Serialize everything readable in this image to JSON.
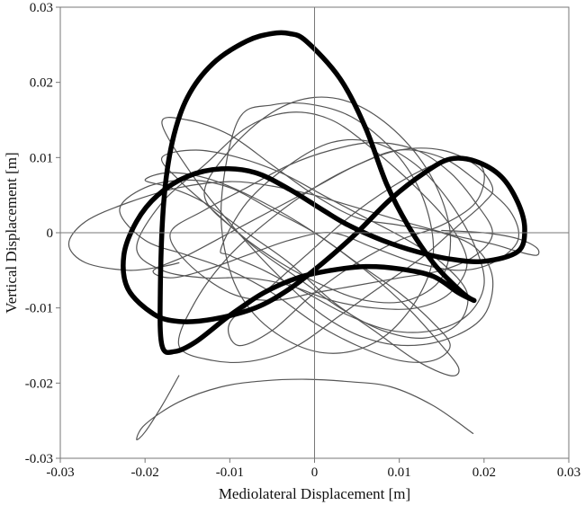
{
  "chart_data": {
    "type": "line",
    "title": "",
    "xlabel": "Mediolateral Displacement [m]",
    "ylabel": "Vertical Displacement [m]",
    "xlim": [
      -0.03,
      0.03
    ],
    "ylim": [
      -0.03,
      0.03
    ],
    "x_ticks": [
      -0.03,
      -0.02,
      -0.01,
      0,
      0.01,
      0.02,
      0.03
    ],
    "y_ticks": [
      -0.03,
      -0.02,
      -0.01,
      0,
      0.01,
      0.02,
      0.03
    ],
    "x_tick_labels": [
      "-0.03",
      "-0.02",
      "-0.01",
      "0",
      "0.01",
      "0.02",
      "0.03"
    ],
    "y_tick_labels": [
      "-0.03",
      "-0.02",
      "-0.01",
      "0",
      "0.01",
      "0.02",
      "0.03"
    ],
    "grid": false,
    "zero_lines": true,
    "colors": {
      "thin": "#555555",
      "bold": "#000000",
      "frame": "#777777"
    },
    "series": [
      {
        "style": "bold",
        "closed": true,
        "x": [
          0.0188,
          0.017,
          0.014,
          0.01,
          0.006,
          0.002,
          -0.002,
          -0.006,
          -0.01,
          -0.014,
          -0.0165,
          -0.018,
          -0.0182,
          -0.0178,
          -0.0168,
          -0.015,
          -0.012,
          -0.008,
          -0.005,
          -0.003,
          -0.001,
          0.003,
          0.006,
          0.0085,
          0.011,
          0.014,
          0.0165,
          0.018,
          0.0188
        ],
        "y": [
          -0.009,
          -0.008,
          -0.0058,
          -0.0048,
          -0.0045,
          -0.005,
          -0.006,
          -0.008,
          -0.011,
          -0.0145,
          -0.0158,
          -0.015,
          -0.008,
          0.004,
          0.012,
          0.018,
          0.0225,
          0.0255,
          0.0265,
          0.0265,
          0.0255,
          0.0205,
          0.014,
          0.0065,
          0.001,
          -0.004,
          -0.007,
          -0.0085,
          -0.009
        ]
      },
      {
        "style": "bold",
        "closed": true,
        "x": [
          -0.016,
          -0.012,
          -0.007,
          -0.003,
          0.001,
          0.005,
          0.009,
          0.013,
          0.016,
          0.019,
          0.022,
          0.024,
          0.0248,
          0.024,
          0.02,
          0.016,
          0.012,
          0.008,
          0.004,
          0.001,
          -0.003,
          -0.007,
          -0.011,
          -0.015,
          -0.0185,
          -0.021,
          -0.0225,
          -0.022,
          -0.019,
          -0.016
        ],
        "y": [
          -0.0118,
          -0.0115,
          -0.01,
          -0.0075,
          -0.004,
          0.0,
          0.0045,
          0.008,
          0.0098,
          0.0095,
          0.0075,
          0.004,
          0.0005,
          -0.0025,
          -0.0038,
          -0.0035,
          -0.0025,
          -0.001,
          0.001,
          0.003,
          0.0058,
          0.008,
          0.0085,
          0.0075,
          0.005,
          0.0015,
          -0.003,
          -0.0075,
          -0.0108,
          -0.0118
        ]
      },
      {
        "style": "thin",
        "closed": false,
        "x": [
          0.0187,
          0.014,
          0.009,
          0.004,
          -0.001,
          -0.006,
          -0.011,
          -0.016,
          -0.02,
          -0.021,
          -0.02,
          -0.018,
          -0.016
        ],
        "y": [
          -0.0267,
          -0.023,
          -0.0205,
          -0.0198,
          -0.0195,
          -0.0197,
          -0.0205,
          -0.0225,
          -0.0255,
          -0.0275,
          -0.0265,
          -0.023,
          -0.019
        ]
      },
      {
        "style": "thin",
        "closed": false,
        "x": [
          -0.016,
          -0.018,
          -0.022,
          -0.027,
          -0.029,
          -0.027,
          -0.022,
          -0.016,
          -0.01,
          -0.005,
          0.0
        ],
        "y": [
          -0.004,
          -0.0045,
          -0.005,
          -0.004,
          -0.0015,
          0.0015,
          0.004,
          0.006,
          0.0068,
          0.0062,
          0.005
        ]
      },
      {
        "style": "thin",
        "closed": false,
        "x": [
          0.0,
          0.006,
          0.012,
          0.017,
          0.021,
          0.024,
          0.0262,
          0.0262,
          0.024,
          0.02,
          0.015
        ],
        "y": [
          0.005,
          0.003,
          0.001,
          -0.0005,
          -0.0015,
          -0.0025,
          -0.003,
          -0.002,
          -0.0008,
          0.0,
          0.0003
        ]
      },
      {
        "style": "thin",
        "closed": true,
        "x": [
          -0.018,
          -0.015,
          -0.01,
          -0.005,
          0.0,
          0.005,
          0.01,
          0.015,
          0.019,
          0.021,
          0.02,
          0.016,
          0.011,
          0.006,
          0.001,
          -0.004,
          -0.009,
          -0.014,
          -0.018
        ],
        "y": [
          0.0145,
          0.015,
          0.013,
          0.009,
          0.005,
          0.002,
          0.001,
          0.0,
          -0.002,
          -0.006,
          -0.011,
          -0.014,
          -0.015,
          -0.014,
          -0.011,
          -0.006,
          0.0,
          0.007,
          0.0145
        ]
      },
      {
        "style": "thin",
        "closed": true,
        "x": [
          -0.021,
          -0.018,
          -0.013,
          -0.008,
          -0.003,
          0.002,
          0.007,
          0.012,
          0.016,
          0.018,
          0.016,
          0.012,
          0.007,
          0.002,
          -0.003,
          -0.008,
          -0.013,
          -0.018,
          -0.021
        ],
        "y": [
          -0.002,
          0.004,
          0.009,
          0.014,
          0.016,
          0.015,
          0.011,
          0.006,
          0.001,
          -0.004,
          -0.008,
          -0.01,
          -0.01,
          -0.009,
          -0.007,
          -0.006,
          -0.006,
          -0.005,
          -0.002
        ]
      },
      {
        "style": "thin",
        "closed": true,
        "x": [
          -0.016,
          -0.012,
          -0.007,
          -0.002,
          0.003,
          0.008,
          0.013,
          0.017,
          0.02,
          0.021,
          0.019,
          0.015,
          0.01,
          0.005,
          0.0,
          -0.005,
          -0.01,
          -0.014,
          -0.016
        ],
        "y": [
          -0.015,
          -0.017,
          -0.017,
          -0.015,
          -0.011,
          -0.007,
          -0.003,
          0.001,
          0.004,
          0.006,
          0.009,
          0.011,
          0.011,
          0.009,
          0.006,
          0.002,
          -0.003,
          -0.009,
          -0.015
        ]
      },
      {
        "style": "thin",
        "closed": true,
        "x": [
          -0.02,
          -0.017,
          -0.012,
          -0.006,
          0.0,
          0.006,
          0.011,
          0.015,
          0.017,
          0.016,
          0.012,
          0.007,
          0.002,
          -0.003,
          -0.008,
          -0.013,
          -0.017,
          -0.02
        ],
        "y": [
          0.007,
          0.008,
          0.007,
          0.004,
          0.0,
          -0.005,
          -0.01,
          -0.015,
          -0.018,
          -0.019,
          -0.017,
          -0.013,
          -0.009,
          -0.004,
          0.0,
          0.004,
          0.006,
          0.007
        ]
      },
      {
        "style": "thin",
        "closed": true,
        "x": [
          -0.013,
          -0.01,
          -0.005,
          0.0,
          0.005,
          0.01,
          0.014,
          0.016,
          0.015,
          0.011,
          0.006,
          0.001,
          -0.004,
          -0.009,
          -0.013
        ],
        "y": [
          0.005,
          0.011,
          0.016,
          0.018,
          0.017,
          0.013,
          0.007,
          0.0,
          -0.006,
          -0.009,
          -0.009,
          -0.007,
          -0.004,
          0.0,
          0.005
        ]
      },
      {
        "style": "thin",
        "closed": true,
        "x": [
          -0.017,
          -0.013,
          -0.008,
          -0.003,
          0.002,
          0.007,
          0.012,
          0.016,
          0.019,
          0.021,
          0.019,
          0.015,
          0.01,
          0.005,
          0.0,
          -0.005,
          -0.01,
          -0.015,
          -0.017
        ],
        "y": [
          0.0,
          0.003,
          0.006,
          0.009,
          0.011,
          0.012,
          0.011,
          0.008,
          0.004,
          0.0,
          -0.003,
          -0.005,
          -0.006,
          -0.007,
          -0.008,
          -0.009,
          -0.008,
          -0.004,
          0.0
        ]
      },
      {
        "style": "thin",
        "closed": true,
        "x": [
          -0.019,
          -0.015,
          -0.01,
          -0.005,
          0.0,
          0.005,
          0.01,
          0.015,
          0.019,
          0.023,
          0.024,
          0.021,
          0.017,
          0.012,
          0.007,
          0.002,
          -0.003,
          -0.008,
          -0.013,
          -0.017,
          -0.019
        ],
        "y": [
          -0.005,
          -0.003,
          0.0,
          0.003,
          0.006,
          0.009,
          0.011,
          0.01,
          0.007,
          0.003,
          -0.001,
          -0.004,
          -0.005,
          -0.004,
          -0.002,
          0.0,
          -0.001,
          -0.003,
          -0.005,
          -0.006,
          -0.005
        ]
      },
      {
        "style": "thin",
        "closed": true,
        "x": [
          -0.009,
          -0.005,
          0.0,
          0.005,
          0.01,
          0.013,
          0.014,
          0.012,
          0.008,
          0.003,
          -0.002,
          -0.007,
          -0.01,
          -0.011,
          -0.009
        ],
        "y": [
          0.015,
          0.017,
          0.017,
          0.015,
          0.01,
          0.004,
          -0.003,
          -0.009,
          -0.014,
          -0.016,
          -0.015,
          -0.011,
          -0.005,
          0.004,
          0.015
        ]
      },
      {
        "style": "thin",
        "closed": true,
        "x": [
          -0.023,
          -0.02,
          -0.015,
          -0.01,
          -0.005,
          0.0,
          0.005,
          0.01,
          0.014,
          0.016,
          0.014,
          0.01,
          0.005,
          0.0,
          -0.005,
          -0.01,
          -0.015,
          -0.02,
          -0.023
        ],
        "y": [
          0.003,
          0.006,
          0.007,
          0.006,
          0.003,
          0.0,
          -0.004,
          -0.008,
          -0.012,
          -0.015,
          -0.017,
          -0.017,
          -0.015,
          -0.012,
          -0.008,
          -0.005,
          -0.003,
          -0.001,
          0.003
        ]
      },
      {
        "style": "thin",
        "closed": true,
        "x": [
          -0.011,
          -0.008,
          -0.003,
          0.002,
          0.007,
          0.012,
          0.016,
          0.019,
          0.02,
          0.018,
          0.014,
          0.009,
          0.004,
          -0.001,
          -0.006,
          -0.01,
          -0.011
        ],
        "y": [
          -0.002,
          0.004,
          0.009,
          0.012,
          0.012,
          0.009,
          0.004,
          -0.002,
          -0.007,
          -0.011,
          -0.013,
          -0.013,
          -0.011,
          -0.008,
          -0.005,
          -0.003,
          -0.002
        ]
      },
      {
        "style": "thin",
        "closed": true,
        "x": [
          -0.018,
          -0.014,
          -0.009,
          -0.004,
          0.001,
          0.006,
          0.011,
          0.015,
          0.018,
          0.017,
          0.013,
          0.008,
          0.003,
          -0.002,
          -0.007,
          -0.012,
          -0.016,
          -0.018
        ],
        "y": [
          0.01,
          0.011,
          0.01,
          0.008,
          0.005,
          0.002,
          -0.001,
          -0.004,
          -0.008,
          -0.012,
          -0.014,
          -0.013,
          -0.01,
          -0.006,
          -0.002,
          0.003,
          0.007,
          0.01
        ]
      },
      {
        "style": "thin",
        "closed": true,
        "x": [
          -0.01,
          -0.006,
          -0.001,
          0.004,
          0.009,
          0.014,
          0.018,
          0.02,
          0.019,
          0.015,
          0.01,
          0.005,
          0.0,
          -0.005,
          -0.009,
          -0.01
        ],
        "y": [
          -0.012,
          -0.008,
          -0.003,
          0.002,
          0.006,
          0.009,
          0.01,
          0.008,
          0.004,
          0.001,
          -0.001,
          -0.004,
          -0.008,
          -0.013,
          -0.015,
          -0.012
        ]
      }
    ]
  }
}
